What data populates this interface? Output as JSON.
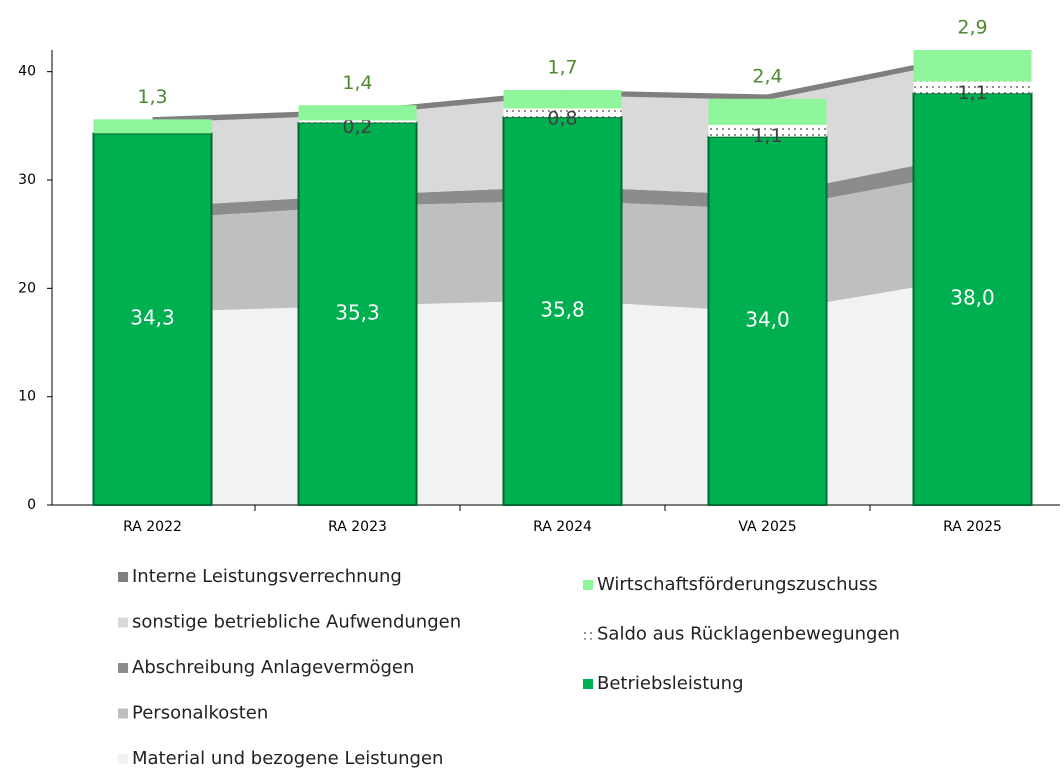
{
  "chart_data": {
    "type": "stacked_area_bar",
    "categories": [
      "RA 2022",
      "RA 2023",
      "RA 2024",
      "VA 2025",
      "RA 2025"
    ],
    "ylim": [
      0,
      42
    ],
    "yticks": [
      0,
      10,
      20,
      30,
      40
    ],
    "series": [
      {
        "name": "Material und bezogene Leistungen",
        "stack": "area",
        "color": "#f2f2f2",
        "values": [
          17.8,
          18.4,
          18.9,
          17.8,
          21.0
        ]
      },
      {
        "name": "Personalkosten",
        "stack": "area",
        "color": "#bfbfbf",
        "values": [
          8.6,
          9.2,
          9.2,
          9.5,
          9.8
        ]
      },
      {
        "name": "Abschreibung Anlagevermögen",
        "stack": "area",
        "color": "#8c8c8c",
        "values": [
          1.1,
          1.0,
          1.3,
          1.3,
          1.6
        ]
      },
      {
        "name": "sonstige betriebliche Aufwendungen",
        "stack": "area",
        "color": "#d9d9d9",
        "values": [
          7.8,
          7.4,
          8.4,
          8.8,
          8.8
        ]
      },
      {
        "name": "Interne Leistungsverrechnung",
        "stack": "area",
        "color": "#7f7f7f",
        "values": [
          0.5,
          0.5,
          0.5,
          0.5,
          0.5
        ]
      },
      {
        "name": "Betriebsleistung",
        "stack": "bar",
        "color": "#00b050",
        "values": [
          34.3,
          35.3,
          35.8,
          34.0,
          38.0
        ],
        "value_labels": [
          "34,3",
          "35,3",
          "35,8",
          "34,0",
          "38,0"
        ]
      },
      {
        "name": "Saldo aus Rücklagenbewegungen",
        "stack": "bar",
        "color": "#ffffff",
        "values": [
          null,
          0.2,
          0.8,
          1.1,
          1.1
        ],
        "value_labels": [
          null,
          "0,2",
          "0,8",
          "1,1",
          "1,1"
        ]
      },
      {
        "name": "Wirtschaftsförderungszuschuss",
        "stack": "bar",
        "color": "#8ff59a",
        "values": [
          1.3,
          1.4,
          1.7,
          2.4,
          2.9
        ],
        "value_labels": [
          "1,3",
          "1,4",
          "1,7",
          "2,4",
          "2,9"
        ]
      }
    ]
  }
}
